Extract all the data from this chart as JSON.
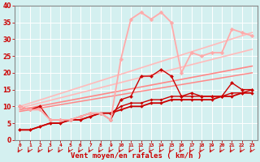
{
  "background_color": "#d4f0f0",
  "xlabel": "Vent moyen/en rafales ( km/h )",
  "xlim": [
    -0.5,
    23.5
  ],
  "ylim": [
    0,
    40
  ],
  "yticks": [
    0,
    5,
    10,
    15,
    20,
    25,
    30,
    35,
    40
  ],
  "xticks": [
    0,
    1,
    2,
    3,
    4,
    5,
    6,
    7,
    8,
    9,
    10,
    11,
    12,
    13,
    14,
    15,
    16,
    17,
    18,
    19,
    20,
    21,
    22,
    23
  ],
  "series": [
    {
      "x": [
        0,
        23
      ],
      "y": [
        10.0,
        32.0
      ],
      "color": "#ffbbbb",
      "lw": 1.2,
      "marker": null
    },
    {
      "x": [
        0,
        23
      ],
      "y": [
        9.5,
        27.0
      ],
      "color": "#ffbbbb",
      "lw": 1.2,
      "marker": null
    },
    {
      "x": [
        0,
        23
      ],
      "y": [
        9.0,
        22.0
      ],
      "color": "#ff8888",
      "lw": 1.2,
      "marker": null
    },
    {
      "x": [
        0,
        23
      ],
      "y": [
        8.5,
        20.0
      ],
      "color": "#ff8888",
      "lw": 1.1,
      "marker": null
    },
    {
      "x": [
        0,
        1,
        2,
        3,
        4,
        5,
        6,
        7,
        8,
        9,
        10,
        11,
        12,
        13,
        14,
        15,
        16,
        17,
        18,
        19,
        20,
        21,
        22,
        23
      ],
      "y": [
        3,
        3,
        4,
        5,
        5,
        6,
        6,
        7,
        8,
        8,
        9,
        10,
        10,
        11,
        11,
        12,
        12,
        12,
        12,
        12,
        13,
        13,
        14,
        14
      ],
      "color": "#cc0000",
      "lw": 1.3,
      "marker": "D",
      "ms": 2.0
    },
    {
      "x": [
        0,
        1,
        2,
        3,
        4,
        5,
        6,
        7,
        8,
        9,
        10,
        11,
        12,
        13,
        14,
        15,
        16,
        17,
        18,
        19,
        20,
        21,
        22,
        23
      ],
      "y": [
        3,
        3,
        4,
        5,
        5,
        6,
        6,
        7,
        8,
        8,
        10,
        11,
        11,
        12,
        12,
        13,
        13,
        13,
        13,
        13,
        13,
        14,
        14,
        15
      ],
      "color": "#cc0000",
      "lw": 1.0,
      "marker": "D",
      "ms": 1.8
    },
    {
      "x": [
        0,
        1,
        2,
        3,
        4,
        5,
        6,
        7,
        8,
        9,
        10,
        11,
        12,
        13,
        14,
        15,
        16,
        17,
        18,
        19,
        20,
        21,
        22,
        23
      ],
      "y": [
        10,
        9,
        10,
        6,
        6,
        6,
        7,
        8,
        8,
        6,
        12,
        13,
        19,
        19,
        21,
        19,
        13,
        14,
        13,
        13,
        13,
        17,
        15,
        15
      ],
      "color": "#cc0000",
      "lw": 1.0,
      "marker": "D",
      "ms": 2.2
    },
    {
      "x": [
        0,
        1,
        2,
        3,
        4,
        5,
        6,
        7,
        8,
        9,
        10,
        11,
        12,
        13,
        14,
        15,
        16,
        17,
        18,
        19,
        20,
        21,
        22,
        23
      ],
      "y": [
        10,
        9,
        9,
        6,
        6,
        6,
        7,
        8,
        8,
        6,
        24,
        36,
        38,
        36,
        38,
        35,
        20,
        26,
        25,
        26,
        26,
        33,
        32,
        31
      ],
      "color": "#ffaaaa",
      "lw": 1.3,
      "marker": "D",
      "ms": 2.5
    }
  ],
  "arrows": {
    "x": [
      0,
      1,
      2,
      3,
      4,
      5,
      6,
      7,
      8,
      9,
      10,
      11,
      12,
      13,
      14,
      15,
      16,
      17,
      18,
      19,
      20,
      21,
      22,
      23
    ],
    "color": "#cc0000"
  }
}
